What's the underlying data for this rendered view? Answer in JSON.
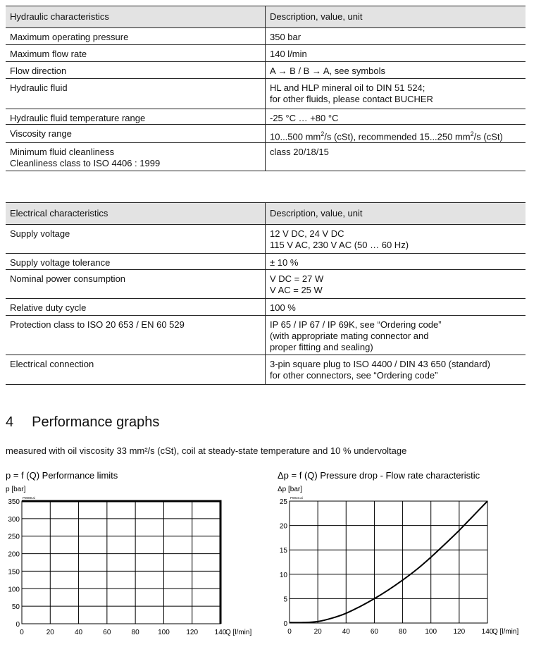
{
  "hydraulic": {
    "header": [
      "Hydraulic characteristics",
      "Description, value, unit"
    ],
    "rows": [
      [
        "Maximum operating pressure",
        "350 bar"
      ],
      [
        "Maximum flow rate",
        "140 l/min"
      ],
      [
        "Flow direction",
        "A → B  /  B → A,  see symbols"
      ],
      [
        "Hydraulic fluid",
        "HL and HLP mineral oil to DIN 51 524;\nfor other fluids, please contact BUCHER"
      ],
      [
        "Hydraulic fluid temperature range",
        "-25 °C … +80 °C"
      ],
      [
        "Viscosity range",
        "10...500 mm²/s (cSt), recommended 15...250 mm²/s (cSt)"
      ],
      [
        "Minimum fluid cleanliness\nCleanliness class to ISO 4406 : 1999",
        "class 20/18/15"
      ]
    ]
  },
  "electrical": {
    "header": [
      "Electrical characteristics",
      "Description, value, unit"
    ],
    "rows": [
      [
        "Supply voltage",
        "12 V DC, 24 V DC\n115 V AC, 230 V AC  (50 … 60 Hz)"
      ],
      [
        "Supply voltage tolerance",
        "± 10 %"
      ],
      [
        "Nominal power consumption",
        "V DC = 27 W\nV AC = 25 W"
      ],
      [
        "Relative duty cycle",
        "100 %"
      ],
      [
        "Protection class to ISO 20 653 / EN 60 529",
        "IP 65 / IP 67 / IP 69K, see “Ordering code”\n(with appropriate mating connector and\nproper fitting and sealing)"
      ],
      [
        "Electrical connection",
        "3-pin square plug to ISO 4400 / DIN 43 650 (standard)\nfor other connectors, see “Ordering code”"
      ]
    ]
  },
  "section": {
    "number": "4",
    "title": "Performance graphs"
  },
  "note": "measured with oil viscosity 33 mm²/s (cSt), coil at steady-state temperature and 10 % undervoltage",
  "chart_data": [
    {
      "type": "line",
      "title": "p = f (Q) Performance limits",
      "xlabel": "Q [l/min]",
      "ylabel": "p [bar]",
      "file_label": "P0009.ai",
      "xlim": [
        0,
        140
      ],
      "ylim": [
        0,
        350
      ],
      "xticks": [
        0,
        20,
        40,
        60,
        80,
        100,
        120,
        140
      ],
      "yticks": [
        0,
        50,
        100,
        150,
        200,
        250,
        300,
        350
      ],
      "grid": true,
      "series": [
        {
          "x": [
            0,
            140,
            140
          ],
          "y": [
            350,
            350,
            0
          ]
        }
      ]
    },
    {
      "type": "line",
      "title": "Δp = f (Q) Pressure drop - Flow rate characteristic",
      "xlabel": "Q [l/min]",
      "ylabel": "Δp [bar]",
      "file_label": "P0010.ai",
      "xlim": [
        0,
        140
      ],
      "ylim": [
        0,
        25
      ],
      "xticks": [
        0,
        20,
        40,
        60,
        80,
        100,
        120,
        140
      ],
      "yticks": [
        0,
        5,
        10,
        15,
        20,
        25
      ],
      "grid": true,
      "series": [
        {
          "x": [
            0,
            10,
            20,
            30,
            40,
            50,
            60,
            70,
            80,
            90,
            100,
            110,
            120,
            130,
            140
          ],
          "y": [
            0.1,
            0.1,
            0.3,
            1,
            2,
            3.4,
            5,
            6.8,
            8.8,
            11,
            13.5,
            16.2,
            19,
            22,
            25
          ]
        }
      ]
    }
  ]
}
